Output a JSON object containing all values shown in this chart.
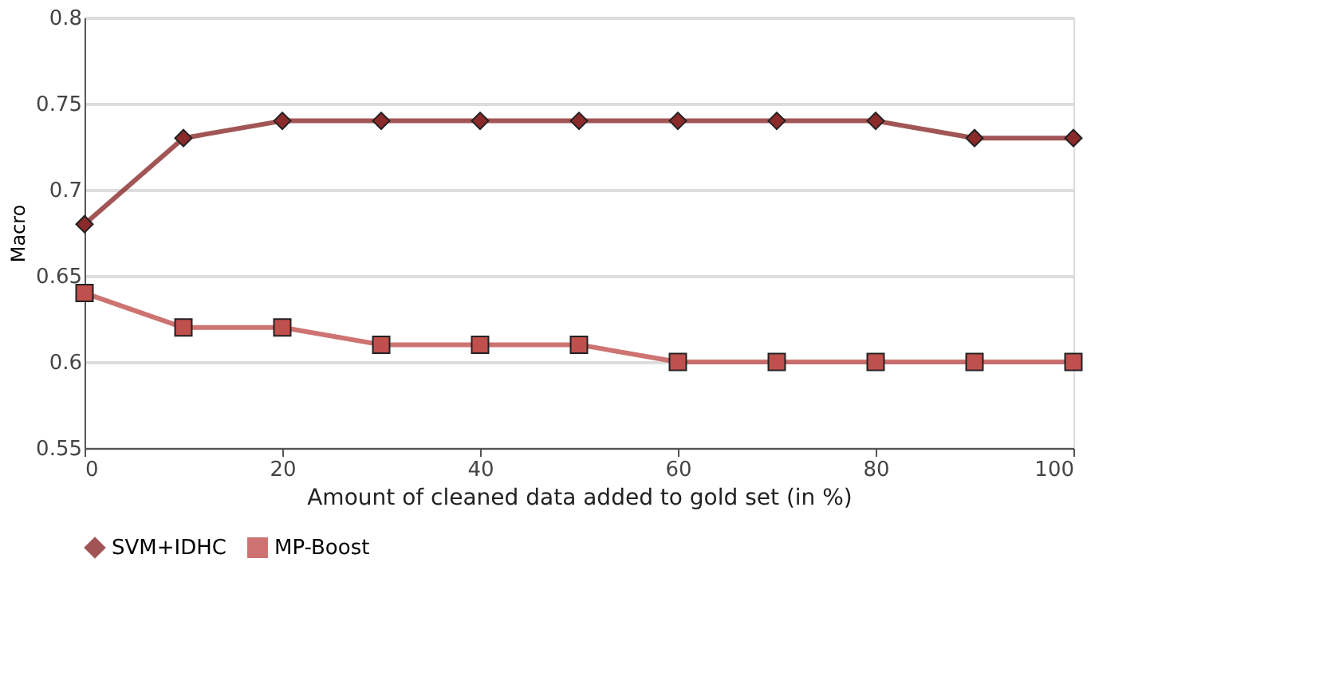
{
  "chart_data": {
    "type": "line",
    "xlabel": "Amount of cleaned data added to gold set (in %)",
    "ylabel": "Macro",
    "x": [
      0,
      10,
      20,
      30,
      40,
      50,
      60,
      70,
      80,
      90,
      100
    ],
    "series": [
      {
        "name": "SVM+IDHC",
        "color": "#8b2a2a",
        "marker": "diamond",
        "values": [
          0.68,
          0.73,
          0.74,
          0.74,
          0.74,
          0.74,
          0.74,
          0.74,
          0.74,
          0.73,
          0.73
        ]
      },
      {
        "name": "MP-Boost",
        "color": "#c0504d",
        "marker": "square",
        "values": [
          0.64,
          0.62,
          0.62,
          0.61,
          0.61,
          0.61,
          0.6,
          0.6,
          0.6,
          0.6,
          0.6
        ]
      }
    ],
    "xlim": [
      0,
      100
    ],
    "xticks": [
      0,
      20,
      40,
      60,
      80,
      100
    ],
    "ylim": [
      0.55,
      0.8
    ],
    "yticks": [
      0.55,
      0.6,
      0.65,
      0.7,
      0.75,
      0.8
    ],
    "grid": "y",
    "legend": "bottom",
    "line_style": "solid"
  }
}
